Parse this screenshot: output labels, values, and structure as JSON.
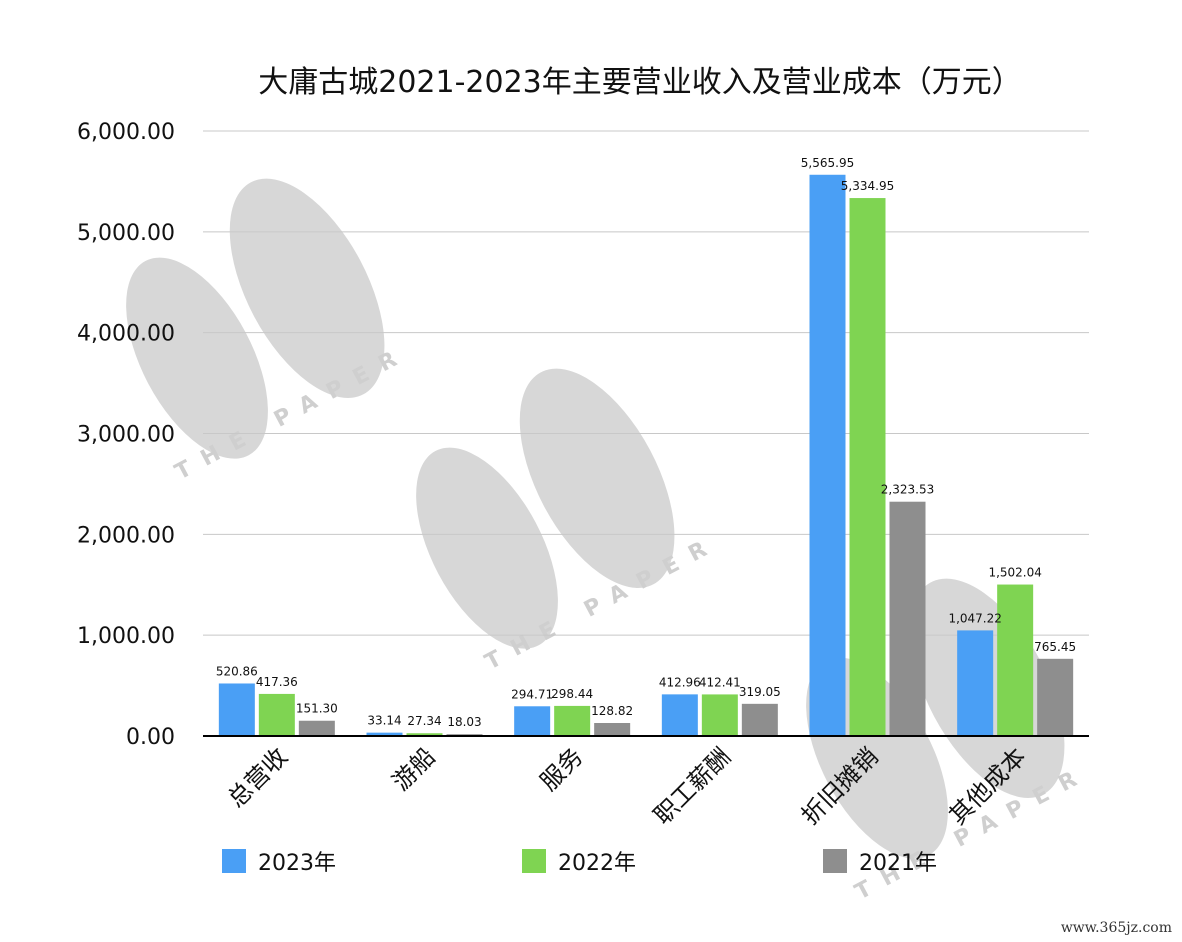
{
  "watermark": {
    "text": "THE PAPER",
    "color": "#d7d7d7"
  },
  "site_label": "www.365jz.com",
  "chart_data": {
    "type": "bar",
    "title": "大庸古城2021-2023年主要营业收入及营业成本（万元）",
    "categories": [
      "总营收",
      "游船",
      "服务",
      "职工薪酬",
      "折旧摊销",
      "其他成本"
    ],
    "ylim": [
      0,
      6000
    ],
    "yticks": [
      "0.00",
      "1,000.00",
      "2,000.00",
      "3,000.00",
      "4,000.00",
      "5,000.00",
      "6,000.00"
    ],
    "grid": true,
    "legend_position": "bottom",
    "series": [
      {
        "name": "2023年",
        "color": "#4a9ff5",
        "values": [
          520.86,
          33.14,
          294.71,
          412.96,
          5565.95,
          1047.22
        ],
        "labels": [
          "520.86",
          "33.14",
          "294.71",
          "412.96",
          "5,565.95",
          "1,047.22"
        ]
      },
      {
        "name": "2022年",
        "color": "#7fd452",
        "values": [
          417.36,
          27.34,
          298.44,
          412.41,
          5334.95,
          1502.04
        ],
        "labels": [
          "417.36",
          "27.34",
          "298.44",
          "412.41",
          "5,334.95",
          "1,502.04"
        ]
      },
      {
        "name": "2021年",
        "color": "#8e8e8e",
        "values": [
          151.3,
          18.03,
          128.82,
          319.05,
          2323.53,
          765.45
        ],
        "labels": [
          "151.30",
          "18.03",
          "128.82",
          "319.05",
          "2,323.53",
          "765.45"
        ]
      }
    ]
  }
}
